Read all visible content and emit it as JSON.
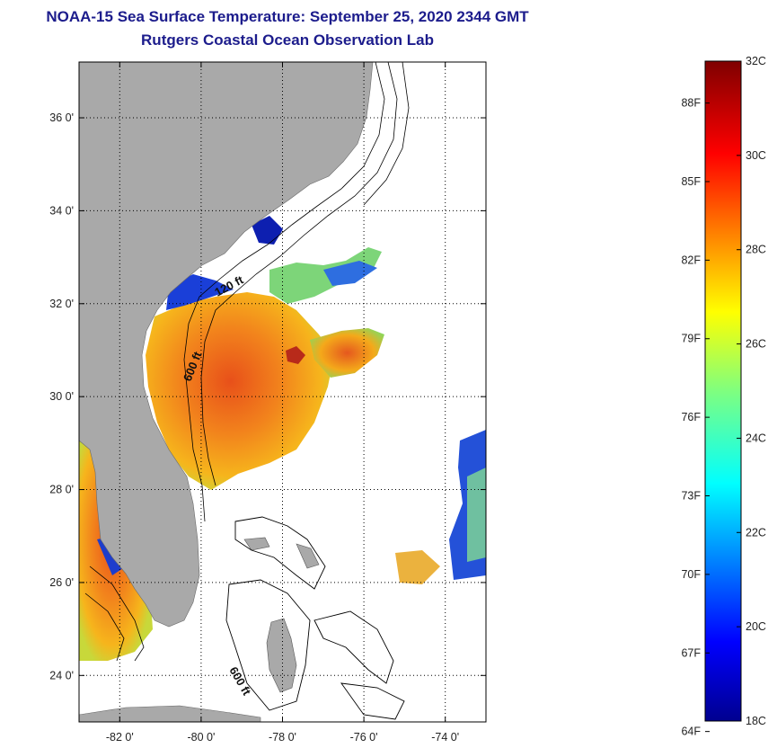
{
  "title": "NOAA-15 Sea Surface Temperature:  September 25, 2020 2344 GMT",
  "subtitle": "Rutgers Coastal Ocean Observation Lab",
  "map": {
    "lat_labels": [
      "36 0'",
      "34 0'",
      "32 0'",
      "30 0'",
      "28 0'",
      "26 0'",
      "24 0'"
    ],
    "lon_labels": [
      "-82 0'",
      "-80 0'",
      "-78 0'",
      "-76 0'",
      "-74 0'"
    ],
    "lat_range": [
      23,
      37.2
    ],
    "lon_range": [
      -83,
      -73
    ],
    "depth_labels": [
      "120 ft",
      "600 ft",
      "600 ft"
    ],
    "colors": {
      "land": "#a9a9a9",
      "no_data": "#ffffff",
      "grid": "#000000"
    }
  },
  "colorbar": {
    "range_c": [
      18,
      32
    ],
    "celsius_labels": [
      "32C",
      "30C",
      "28C",
      "26C",
      "24C",
      "22C",
      "20C",
      "18C"
    ],
    "fahrenheit_labels": [
      "88F",
      "85F",
      "82F",
      "79F",
      "76F",
      "73F",
      "70F",
      "67F",
      "64F"
    ],
    "colormap": "jet"
  }
}
